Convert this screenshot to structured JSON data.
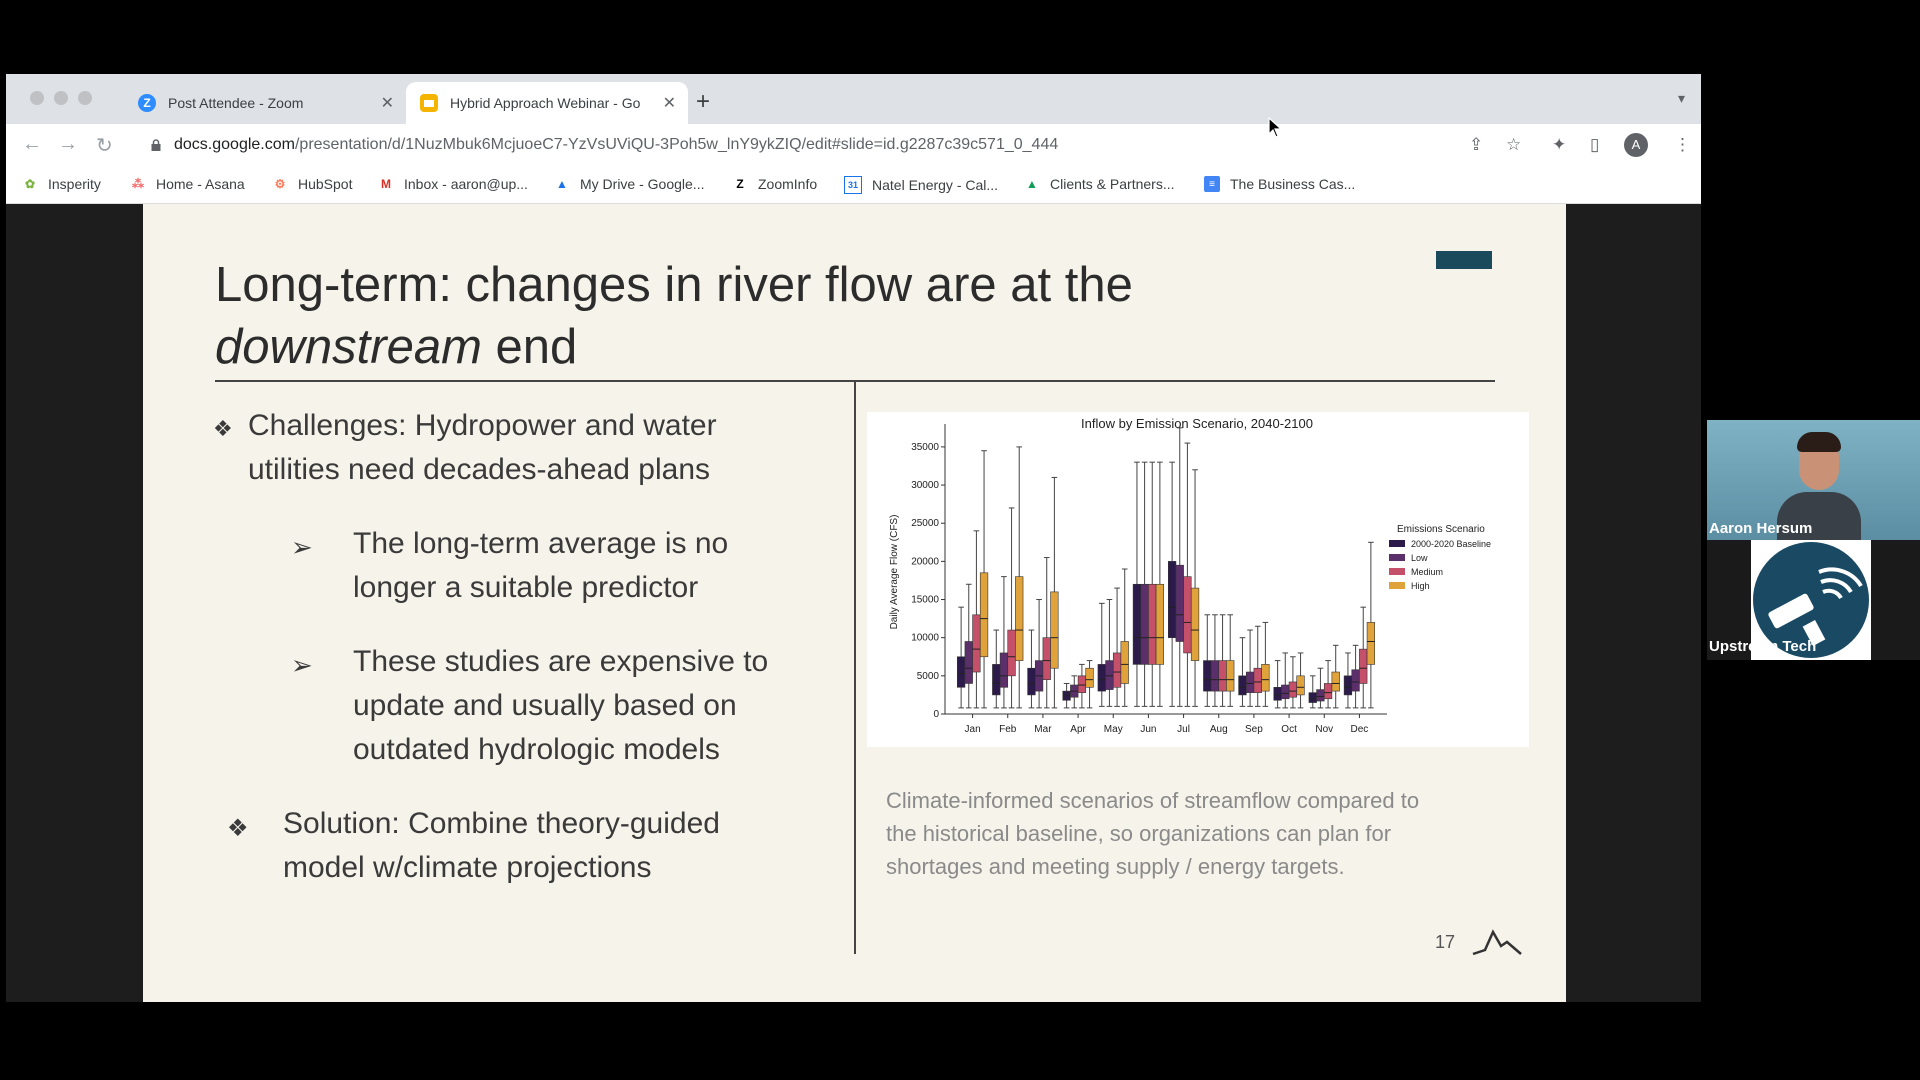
{
  "browser": {
    "tabs": [
      {
        "title": "Post Attendee - Zoom",
        "icon": "zoom-icon",
        "active": false
      },
      {
        "title": "Hybrid Approach Webinar - Go",
        "icon": "slides-icon",
        "active": true
      }
    ],
    "url_host": "docs.google.com",
    "url_path": "/presentation/d/1NuzMbuk6McjuoeC7-YzVsUViQU-3Poh5w_lnY9ykZIQ/edit#slide=id.g2287c39c571_0_444",
    "profile_initial": "A",
    "bookmarks": [
      {
        "label": "Insperity",
        "icon": "insperity-icon"
      },
      {
        "label": "Home - Asana",
        "icon": "asana-icon"
      },
      {
        "label": "HubSpot",
        "icon": "hubspot-icon"
      },
      {
        "label": "Inbox - aaron@up...",
        "icon": "gmail-icon"
      },
      {
        "label": "My Drive - Google...",
        "icon": "drive-icon"
      },
      {
        "label": "ZoomInfo",
        "icon": "zoominfo-icon"
      },
      {
        "label": "Natel Energy - Cal...",
        "icon": "calendar-icon"
      },
      {
        "label": "Clients & Partners...",
        "icon": "drive-icon"
      },
      {
        "label": "The Business Cas...",
        "icon": "docs-icon"
      }
    ]
  },
  "slide": {
    "title_line1": "Long-term: changes in river flow are at the",
    "title_italic": "downstream",
    "title_end": " end",
    "bullets": [
      {
        "line1": "Challenges: Hydropower and water",
        "line2": "utilities need decades-ahead plans"
      },
      {
        "line1": "The long-term average is no",
        "line2": "longer a suitable predictor"
      },
      {
        "line1": "These studies are expensive to",
        "line2": "update and usually based on",
        "line3": "outdated hydrologic models"
      },
      {
        "line1": "Solution: Combine theory-guided",
        "line2": "model w/climate projections"
      }
    ],
    "caption_line1": "Climate-informed scenarios of streamflow compared to",
    "caption_line2": "the historical baseline, so organizations can plan for",
    "caption_line3": "shortages and meeting supply / energy targets.",
    "page_number": "17"
  },
  "chart_data": {
    "type": "box",
    "title": "Inflow by Emission Scenario, 2040-2100",
    "ylabel": "Daily Average Flow (CFS)",
    "ylim": [
      0,
      38000
    ],
    "yticks": [
      0,
      5000,
      10000,
      15000,
      20000,
      25000,
      30000,
      35000
    ],
    "categories": [
      "Jan",
      "Feb",
      "Mar",
      "Apr",
      "May",
      "Jun",
      "Jul",
      "Aug",
      "Sep",
      "Oct",
      "Nov",
      "Dec"
    ],
    "legend_title": "Emissions Scenario",
    "legend_position": "right",
    "series": [
      {
        "name": "2000-2020 Baseline",
        "color": "#2b1a4a",
        "boxes": [
          [
            800,
            3500,
            5300,
            7500,
            14000
          ],
          [
            800,
            2500,
            4000,
            6500,
            11000
          ],
          [
            800,
            2500,
            4000,
            6000,
            11000
          ],
          [
            800,
            1800,
            2400,
            3000,
            4000
          ],
          [
            1000,
            3000,
            4500,
            6500,
            14500
          ],
          [
            1000,
            6500,
            10000,
            17000,
            33000
          ],
          [
            1000,
            10000,
            14000,
            20000,
            33000
          ],
          [
            1000,
            3000,
            4500,
            7000,
            13000
          ],
          [
            1000,
            2500,
            3500,
            5000,
            10000
          ],
          [
            800,
            1800,
            2500,
            3500,
            7000
          ],
          [
            800,
            1500,
            2000,
            2800,
            5000
          ],
          [
            800,
            2500,
            3500,
            5000,
            8000
          ]
        ]
      },
      {
        "name": "Low",
        "color": "#5a2f6a",
        "boxes": [
          [
            800,
            4000,
            6000,
            9500,
            17000
          ],
          [
            800,
            3500,
            5000,
            8000,
            18000
          ],
          [
            800,
            3000,
            5000,
            7000,
            15000
          ],
          [
            800,
            2200,
            3000,
            3800,
            5000
          ],
          [
            1000,
            3200,
            5000,
            7000,
            15000
          ],
          [
            1000,
            6500,
            10000,
            17000,
            33000
          ],
          [
            1000,
            9500,
            13000,
            19500,
            37500
          ],
          [
            1000,
            3000,
            4500,
            7000,
            13000
          ],
          [
            1000,
            2800,
            4000,
            5500,
            11000
          ],
          [
            800,
            2000,
            2700,
            3800,
            8000
          ],
          [
            800,
            1700,
            2300,
            3200,
            6000
          ],
          [
            800,
            3000,
            4200,
            5800,
            9000
          ]
        ]
      },
      {
        "name": "Medium",
        "color": "#c4506a",
        "boxes": [
          [
            800,
            5500,
            8500,
            13000,
            24000
          ],
          [
            800,
            5000,
            7500,
            11000,
            27000
          ],
          [
            800,
            4500,
            7000,
            10000,
            20500
          ],
          [
            800,
            2800,
            3800,
            5000,
            6500
          ],
          [
            1000,
            3500,
            5500,
            8000,
            16500
          ],
          [
            1000,
            6500,
            10000,
            17000,
            33000
          ],
          [
            1000,
            8000,
            12000,
            18000,
            35500
          ],
          [
            1000,
            3000,
            4500,
            7000,
            13000
          ],
          [
            1000,
            2800,
            4200,
            6000,
            11500
          ],
          [
            800,
            2200,
            3000,
            4200,
            7500
          ],
          [
            800,
            2000,
            2800,
            4000,
            7000
          ],
          [
            800,
            4000,
            6000,
            8500,
            14000
          ]
        ]
      },
      {
        "name": "High",
        "color": "#e0a23a",
        "boxes": [
          [
            800,
            7500,
            12500,
            18500,
            34500
          ],
          [
            800,
            7000,
            11000,
            18000,
            35000
          ],
          [
            800,
            6000,
            10000,
            16000,
            31000
          ],
          [
            800,
            3500,
            4500,
            6000,
            7000
          ],
          [
            1000,
            4000,
            6500,
            9500,
            19000
          ],
          [
            1000,
            6500,
            10000,
            17000,
            33000
          ],
          [
            1000,
            7000,
            11000,
            16500,
            32000
          ],
          [
            1000,
            3000,
            4500,
            7000,
            13000
          ],
          [
            1000,
            3000,
            4500,
            6500,
            12000
          ],
          [
            800,
            2500,
            3500,
            5000,
            8000
          ],
          [
            800,
            3000,
            4000,
            5500,
            9000
          ],
          [
            800,
            6500,
            9500,
            12000,
            22500
          ]
        ]
      }
    ]
  },
  "participants": [
    {
      "name": "Aaron Hersum"
    },
    {
      "name": "Upstream Tech"
    }
  ]
}
